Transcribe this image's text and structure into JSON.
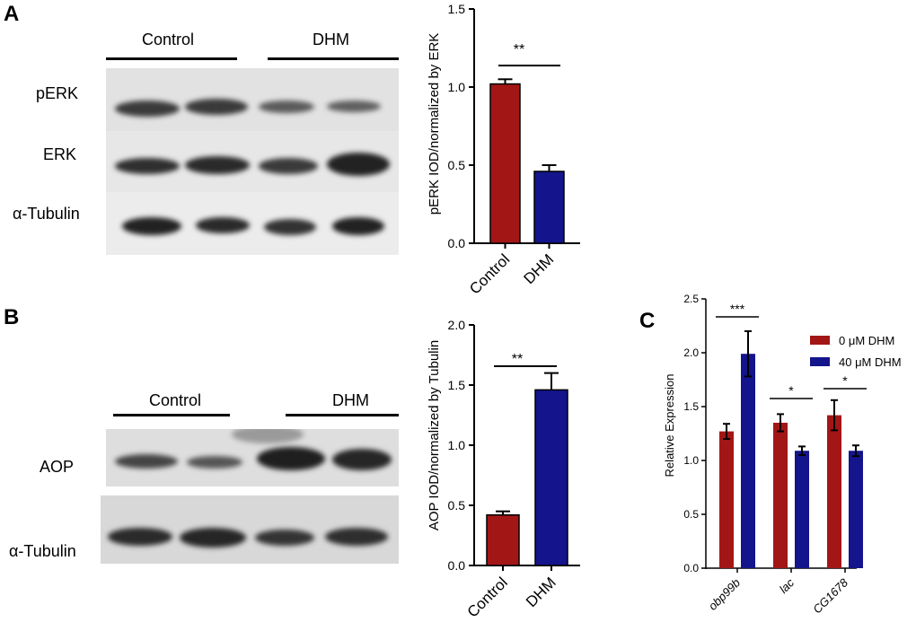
{
  "panels": {
    "A": {
      "letter": "A",
      "groups": [
        "Control",
        "DHM"
      ],
      "rows": [
        "pERK",
        "ERK",
        "α-Tubulin"
      ]
    },
    "B": {
      "letter": "B",
      "groups": [
        "Control",
        "DHM"
      ],
      "rows": [
        "AOP",
        "α-Tubulin"
      ]
    },
    "C": {
      "letter": "C"
    }
  },
  "colors": {
    "control": "#a31616",
    "dhm": "#14148c"
  },
  "chart_data": [
    {
      "id": "A",
      "type": "bar",
      "categories": [
        "Control",
        "DHM"
      ],
      "values": [
        1.02,
        0.46
      ],
      "errors": [
        0.03,
        0.04
      ],
      "ylabel": "pERK IOD/normalized by ERK",
      "ylim": [
        0,
        1.5
      ],
      "yticks": [
        "0.0",
        "0.5",
        "1.0",
        "1.5"
      ],
      "significance": "**"
    },
    {
      "id": "B",
      "type": "bar",
      "categories": [
        "Control",
        "DHM"
      ],
      "values": [
        0.42,
        1.46
      ],
      "errors": [
        0.03,
        0.14
      ],
      "ylabel": "AOP IOD/normalized by Tubulin",
      "ylim": [
        0,
        2.0
      ],
      "yticks": [
        "0.0",
        "0.5",
        "1.0",
        "1.5",
        "2.0"
      ],
      "significance": "**"
    },
    {
      "id": "C",
      "type": "bar",
      "categories": [
        "obp99b",
        "lac",
        "CG1678"
      ],
      "series": [
        {
          "name": "0 μM DHM",
          "values": [
            1.27,
            1.35,
            1.42
          ],
          "errors": [
            0.07,
            0.08,
            0.14
          ]
        },
        {
          "name": "40 μM DHM",
          "values": [
            1.99,
            1.09,
            1.09
          ],
          "errors": [
            0.21,
            0.04,
            0.05
          ]
        }
      ],
      "ylabel": "Relative Expression",
      "ylim": [
        0,
        2.5
      ],
      "yticks": [
        "0.0",
        "0.5",
        "1.0",
        "1.5",
        "2.0",
        "2.5"
      ],
      "significance": [
        "***",
        "*",
        "*"
      ],
      "legend": "top-right"
    }
  ]
}
